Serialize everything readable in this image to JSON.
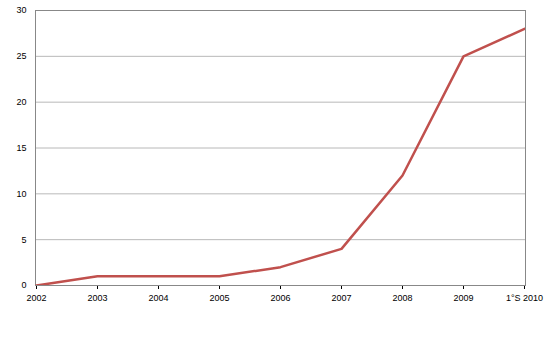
{
  "chart_data": {
    "type": "line",
    "categories": [
      "2002",
      "2003",
      "2004",
      "2005",
      "2006",
      "2007",
      "2008",
      "2009",
      "1°S 2010"
    ],
    "values": [
      0,
      1,
      1,
      1,
      2,
      4,
      12,
      25,
      28
    ],
    "color": "#c0504d",
    "ylim": [
      0,
      30
    ],
    "yticks": [
      0,
      5,
      10,
      15,
      20,
      25,
      30
    ],
    "grid": true
  }
}
